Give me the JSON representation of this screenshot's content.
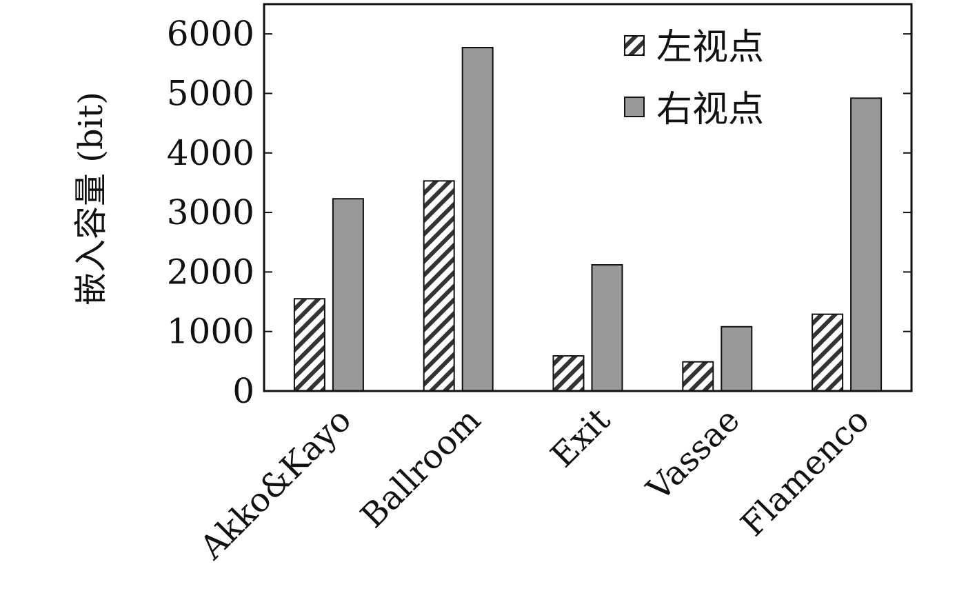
{
  "chart_data": {
    "type": "bar",
    "title": "",
    "xlabel": "",
    "ylabel": "嵌入容量 (bit)",
    "categories": [
      "Akko&Kayo",
      "Ballroom",
      "Exit",
      "Vassae",
      "Flamenco"
    ],
    "series": [
      {
        "name": "左视点",
        "values": [
          1550,
          3530,
          590,
          490,
          1290
        ],
        "fill": "hatched"
      },
      {
        "name": "右视点",
        "values": [
          3230,
          5770,
          2120,
          1080,
          4920
        ],
        "fill": "#999999"
      }
    ],
    "ylim": [
      0,
      6500
    ],
    "yticks": [
      "0",
      "1000",
      "2000",
      "3000",
      "4000",
      "5000",
      "6000"
    ],
    "grid": false,
    "legend_position": "top-right",
    "colors": {
      "bar_gray": "#999999",
      "hatch_stroke": "#333333",
      "outline": "#111111"
    }
  }
}
